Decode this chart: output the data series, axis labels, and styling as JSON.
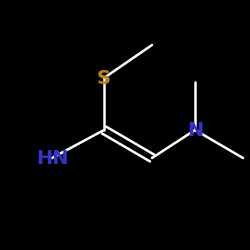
{
  "background_color": "#000000",
  "bond_color": "#ffffff",
  "atom_colors": {
    "S": "#b8860b",
    "N": "#3333cc",
    "NH": "#3333cc"
  },
  "figsize": [
    2.5,
    2.5
  ],
  "dpi": 100,
  "bond_lw": 1.8,
  "font_size": 14
}
